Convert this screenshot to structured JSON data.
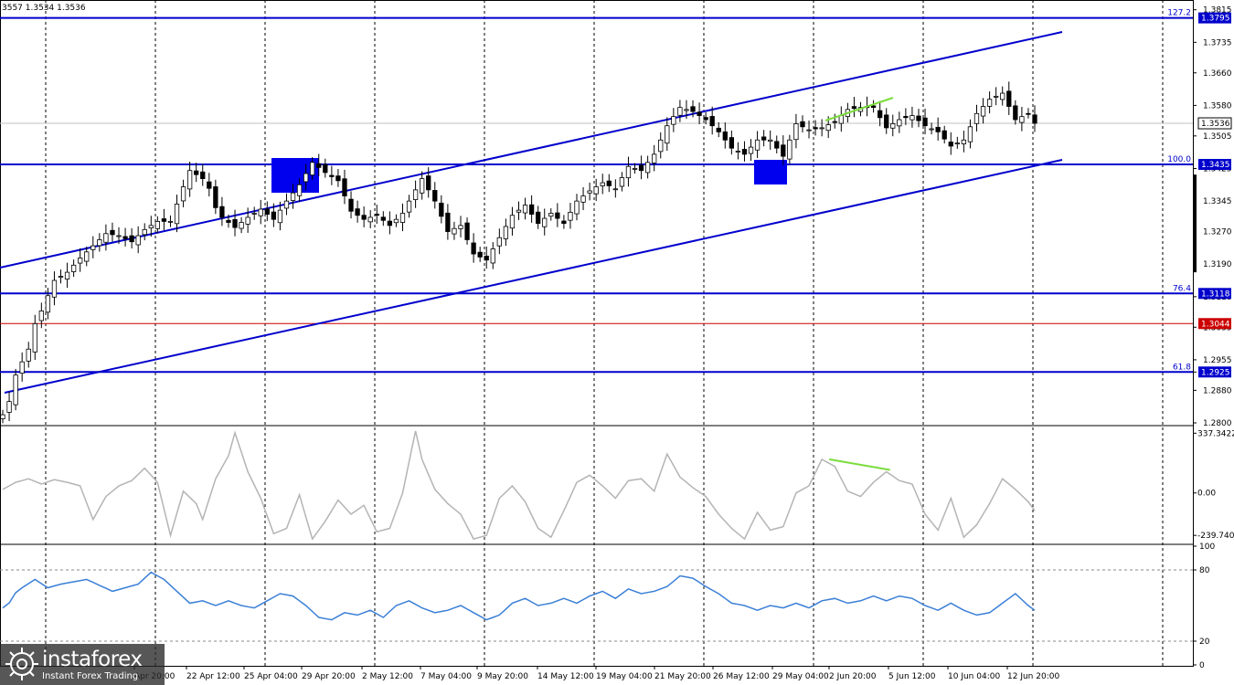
{
  "header": {
    "ohlc": "3557 1.3534 1.3536"
  },
  "logo": {
    "name": "instaforex",
    "tagline": "Instant Forex Trading"
  },
  "colors": {
    "level_line": "#0000cc",
    "channel_line": "#0000cc",
    "support_red": "#cc0000",
    "candle": "#000000",
    "cci": "#b4b4b4",
    "rsi": "#3a7fd6",
    "divergence": "#7bdc3c",
    "highlight_box": "#0000ee",
    "grid": "#000000"
  },
  "chart_data": [
    {
      "type": "candlestick",
      "title": "",
      "ylim": [
        1.28,
        1.383
      ],
      "y_ticks": [
        "1.3815",
        "1.3735",
        "1.3660",
        "1.3580",
        "1.3505",
        "1.3425",
        "1.3345",
        "1.3270",
        "1.3190",
        "1.3110",
        "1.3035",
        "1.2955",
        "1.2925",
        "1.2880",
        "1.2800"
      ],
      "x_labels": [
        "Apr 20:00",
        "22 Apr 12:00",
        "25 Apr 04:00",
        "29 Apr 20:00",
        "2 May 12:00",
        "7 May 04:00",
        "9 May 20:00",
        "14 May 12:00",
        "19 May 04:00",
        "21 May 20:00",
        "26 May 12:00",
        "29 May 04:00",
        "2 Jun 20:00",
        "5 Jun 12:00",
        "10 Jun 04:00",
        "12 Jun 20:00"
      ],
      "levels": [
        {
          "value": 1.3795,
          "fib": "127.2",
          "label": "1.3795",
          "color": "#0000cc"
        },
        {
          "value": 1.3435,
          "fib": "100.0",
          "label": "1.3435",
          "color": "#0000cc"
        },
        {
          "value": 1.3118,
          "fib": "76.4",
          "label": "1.3118",
          "color": "#0000cc"
        },
        {
          "value": 1.3044,
          "fib": "",
          "label": "1.3044",
          "color": "#cc0000"
        },
        {
          "value": 1.2925,
          "fib": "61.8",
          "label": "1.2925",
          "color": "#0000cc"
        }
      ],
      "current_price": "1.3536",
      "series": [
        {
          "anchors": [
            [
              0,
              1.282
            ],
            [
              3,
              1.295
            ],
            [
              6,
              1.3075
            ],
            [
              8,
              1.315
            ],
            [
              10,
              1.317
            ],
            [
              12,
              1.3205
            ],
            [
              14,
              1.3235
            ],
            [
              16,
              1.3265
            ],
            [
              18,
              1.326
            ],
            [
              20,
              1.3245
            ],
            [
              22,
              1.3275
            ],
            [
              24,
              1.3295
            ],
            [
              26,
              1.3295
            ],
            [
              28,
              1.338
            ],
            [
              29,
              1.342
            ],
            [
              31,
              1.34
            ],
            [
              34,
              1.3305
            ],
            [
              36,
              1.328
            ],
            [
              38,
              1.3305
            ],
            [
              40,
              1.3325
            ],
            [
              42,
              1.33
            ],
            [
              44,
              1.3345
            ],
            [
              46,
              1.3385
            ],
            [
              48,
              1.344
            ],
            [
              50,
              1.3415
            ],
            [
              52,
              1.3395
            ],
            [
              54,
              1.332
            ],
            [
              56,
              1.33
            ],
            [
              58,
              1.331
            ],
            [
              60,
              1.3285
            ],
            [
              62,
              1.3315
            ],
            [
              63,
              1.3345
            ],
            [
              65,
              1.34
            ],
            [
              67,
              1.3345
            ],
            [
              69,
              1.327
            ],
            [
              71,
              1.3285
            ],
            [
              73,
              1.3215
            ],
            [
              75,
              1.32
            ],
            [
              77,
              1.3255
            ],
            [
              79,
              1.331
            ],
            [
              81,
              1.3335
            ],
            [
              83,
              1.329
            ],
            [
              85,
              1.3315
            ],
            [
              87,
              1.329
            ],
            [
              89,
              1.3345
            ],
            [
              91,
              1.337
            ],
            [
              93,
              1.339
            ],
            [
              95,
              1.3375
            ],
            [
              97,
              1.343
            ],
            [
              99,
              1.342
            ],
            [
              101,
              1.346
            ],
            [
              103,
              1.353
            ],
            [
              105,
              1.3575
            ],
            [
              107,
              1.3565
            ],
            [
              109,
              1.3545
            ],
            [
              111,
              1.3515
            ],
            [
              113,
              1.3475
            ],
            [
              115,
              1.346
            ],
            [
              117,
              1.3495
            ],
            [
              119,
              1.3495
            ],
            [
              121,
              1.3455
            ],
            [
              123,
              1.3535
            ],
            [
              125,
              1.352
            ],
            [
              127,
              1.3525
            ],
            [
              129,
              1.354
            ],
            [
              131,
              1.357
            ],
            [
              133,
              1.3575
            ],
            [
              135,
              1.3575
            ],
            [
              137,
              1.3525
            ],
            [
              139,
              1.3545
            ],
            [
              141,
              1.3555
            ],
            [
              143,
              1.353
            ],
            [
              145,
              1.3515
            ],
            [
              147,
              1.348
            ],
            [
              149,
              1.3495
            ],
            [
              151,
              1.356
            ],
            [
              153,
              1.3595
            ],
            [
              155,
              1.361
            ],
            [
              157,
              1.3545
            ],
            [
              159,
              1.356
            ],
            [
              160,
              1.3536
            ]
          ]
        }
      ]
    },
    {
      "type": "line",
      "title": "",
      "y_ticks": [
        "337.3422",
        "0.00",
        "-239.7408"
      ],
      "ylim": [
        -280,
        370
      ],
      "series": [
        {
          "anchors": [
            [
              0,
              20
            ],
            [
              2,
              60
            ],
            [
              4,
              80
            ],
            [
              6,
              50
            ],
            [
              8,
              75
            ],
            [
              10,
              60
            ],
            [
              12,
              40
            ],
            [
              14,
              -150
            ],
            [
              16,
              -20
            ],
            [
              18,
              40
            ],
            [
              20,
              70
            ],
            [
              22,
              140
            ],
            [
              24,
              60
            ],
            [
              26,
              -240
            ],
            [
              28,
              10
            ],
            [
              30,
              -60
            ],
            [
              31,
              -150
            ],
            [
              33,
              80
            ],
            [
              35,
              210
            ],
            [
              36,
              340
            ],
            [
              38,
              120
            ],
            [
              40,
              -30
            ],
            [
              42,
              -230
            ],
            [
              44,
              -200
            ],
            [
              46,
              -10
            ],
            [
              48,
              -260
            ],
            [
              50,
              -160
            ],
            [
              52,
              -40
            ],
            [
              54,
              -120
            ],
            [
              56,
              -70
            ],
            [
              58,
              -220
            ],
            [
              60,
              -200
            ],
            [
              62,
              0
            ],
            [
              64,
              350
            ],
            [
              65,
              190
            ],
            [
              67,
              20
            ],
            [
              69,
              -60
            ],
            [
              71,
              -120
            ],
            [
              73,
              -260
            ],
            [
              75,
              -240
            ],
            [
              77,
              -30
            ],
            [
              79,
              40
            ],
            [
              81,
              -50
            ],
            [
              83,
              -200
            ],
            [
              85,
              -250
            ],
            [
              87,
              -100
            ],
            [
              89,
              60
            ],
            [
              91,
              100
            ],
            [
              93,
              40
            ],
            [
              95,
              -30
            ],
            [
              97,
              70
            ],
            [
              99,
              80
            ],
            [
              101,
              10
            ],
            [
              103,
              220
            ],
            [
              105,
              90
            ],
            [
              107,
              30
            ],
            [
              109,
              -20
            ],
            [
              111,
              -120
            ],
            [
              113,
              -200
            ],
            [
              115,
              -260
            ],
            [
              117,
              -110
            ],
            [
              119,
              -210
            ],
            [
              121,
              -190
            ],
            [
              123,
              0
            ],
            [
              125,
              40
            ],
            [
              127,
              190
            ],
            [
              129,
              150
            ],
            [
              131,
              10
            ],
            [
              133,
              -20
            ],
            [
              135,
              60
            ],
            [
              137,
              120
            ],
            [
              139,
              70
            ],
            [
              141,
              50
            ],
            [
              143,
              -120
            ],
            [
              145,
              -210
            ],
            [
              147,
              -30
            ],
            [
              149,
              -250
            ],
            [
              151,
              -180
            ],
            [
              153,
              -60
            ],
            [
              155,
              80
            ],
            [
              157,
              20
            ],
            [
              159,
              -50
            ],
            [
              160,
              -100
            ]
          ]
        },
        {
          "name": "",
          "anchors": [
            [
              127,
              190
            ],
            [
              137,
              130
            ]
          ],
          "color": "#7bdc3c"
        }
      ]
    },
    {
      "type": "line",
      "title": "",
      "y_ticks": [
        "100",
        "80",
        "20",
        "0"
      ],
      "ylim": [
        0,
        100
      ],
      "series": [
        {
          "anchors": [
            [
              0,
              48
            ],
            [
              3,
              65
            ],
            [
              5,
              72
            ],
            [
              7,
              65
            ],
            [
              9,
              68
            ],
            [
              11,
              70
            ],
            [
              13,
              72
            ],
            [
              15,
              67
            ],
            [
              17,
              62
            ],
            [
              19,
              65
            ],
            [
              21,
              68
            ],
            [
              23,
              78
            ],
            [
              25,
              72
            ],
            [
              27,
              62
            ],
            [
              29,
              52
            ],
            [
              31,
              54
            ],
            [
              33,
              50
            ],
            [
              35,
              54
            ],
            [
              37,
              50
            ],
            [
              39,
              48
            ],
            [
              41,
              54
            ],
            [
              43,
              60
            ],
            [
              45,
              58
            ],
            [
              47,
              50
            ],
            [
              49,
              40
            ],
            [
              51,
              38
            ],
            [
              53,
              44
            ],
            [
              55,
              42
            ],
            [
              57,
              46
            ],
            [
              59,
              40
            ],
            [
              61,
              50
            ],
            [
              63,
              54
            ],
            [
              65,
              48
            ],
            [
              67,
              44
            ],
            [
              69,
              46
            ],
            [
              71,
              50
            ],
            [
              73,
              44
            ],
            [
              75,
              38
            ],
            [
              77,
              42
            ],
            [
              79,
              52
            ],
            [
              81,
              56
            ],
            [
              83,
              50
            ],
            [
              85,
              52
            ],
            [
              87,
              56
            ],
            [
              89,
              52
            ],
            [
              91,
              58
            ],
            [
              93,
              62
            ],
            [
              95,
              56
            ],
            [
              97,
              64
            ],
            [
              99,
              60
            ],
            [
              101,
              62
            ],
            [
              103,
              66
            ],
            [
              105,
              75
            ],
            [
              107,
              73
            ],
            [
              109,
              66
            ],
            [
              111,
              60
            ],
            [
              113,
              52
            ],
            [
              115,
              50
            ],
            [
              117,
              46
            ],
            [
              119,
              50
            ],
            [
              121,
              48
            ],
            [
              123,
              52
            ],
            [
              125,
              48
            ],
            [
              127,
              54
            ],
            [
              129,
              56
            ],
            [
              131,
              52
            ],
            [
              133,
              54
            ],
            [
              135,
              58
            ],
            [
              137,
              54
            ],
            [
              139,
              58
            ],
            [
              141,
              56
            ],
            [
              143,
              50
            ],
            [
              145,
              46
            ],
            [
              147,
              52
            ],
            [
              149,
              46
            ],
            [
              151,
              42
            ],
            [
              153,
              44
            ],
            [
              155,
              52
            ],
            [
              157,
              60
            ],
            [
              159,
              50
            ],
            [
              160,
              46
            ]
          ]
        }
      ]
    }
  ]
}
